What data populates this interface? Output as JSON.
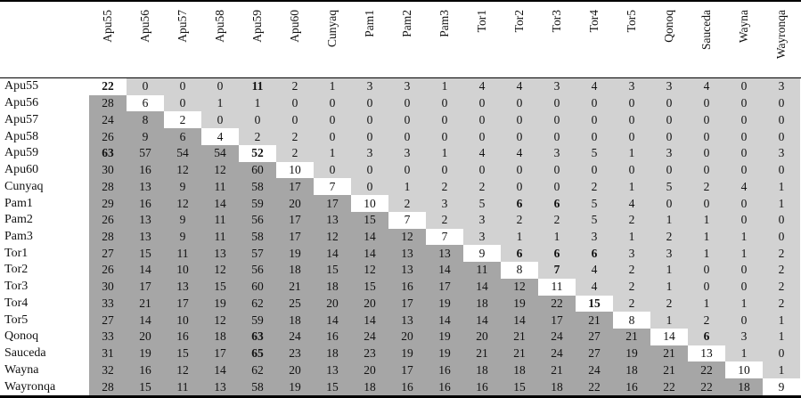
{
  "table": {
    "column_headers": [
      "Apu55",
      "Apu56",
      "Apu57",
      "Apu58",
      "Apu59",
      "Apu60",
      "Cunyaq",
      "Pam1",
      "Pam2",
      "Pam3",
      "Tor1",
      "Tor2",
      "Tor3",
      "Tor4",
      "Tor5",
      "Qonoq",
      "Sauceda",
      "Wayna",
      "Wayronqa"
    ],
    "row_headers": [
      "Apu55",
      "Apu56",
      "Apu57",
      "Apu58",
      "Apu59",
      "Apu60",
      "Cunyaq",
      "Pam1",
      "Pam2",
      "Pam3",
      "Tor1",
      "Tor2",
      "Tor3",
      "Tor4",
      "Tor5",
      "Qonoq",
      "Sauceda",
      "Wayna",
      "Wayronqa"
    ],
    "rows": [
      [
        22,
        0,
        0,
        0,
        11,
        2,
        1,
        3,
        3,
        1,
        4,
        4,
        3,
        4,
        3,
        3,
        4,
        0,
        3
      ],
      [
        28,
        6,
        0,
        1,
        1,
        0,
        0,
        0,
        0,
        0,
        0,
        0,
        0,
        0,
        0,
        0,
        0,
        0,
        0
      ],
      [
        24,
        8,
        2,
        0,
        0,
        0,
        0,
        0,
        0,
        0,
        0,
        0,
        0,
        0,
        0,
        0,
        0,
        0,
        0
      ],
      [
        26,
        9,
        6,
        4,
        2,
        2,
        0,
        0,
        0,
        0,
        0,
        0,
        0,
        0,
        0,
        0,
        0,
        0,
        0
      ],
      [
        63,
        57,
        54,
        54,
        52,
        2,
        1,
        3,
        3,
        1,
        4,
        4,
        3,
        5,
        1,
        3,
        0,
        0,
        3
      ],
      [
        30,
        16,
        12,
        12,
        60,
        10,
        0,
        0,
        0,
        0,
        0,
        0,
        0,
        0,
        0,
        0,
        0,
        0,
        0
      ],
      [
        28,
        13,
        9,
        11,
        58,
        17,
        7,
        0,
        1,
        2,
        2,
        0,
        0,
        2,
        1,
        5,
        2,
        4,
        1
      ],
      [
        29,
        16,
        12,
        14,
        59,
        20,
        17,
        10,
        2,
        3,
        5,
        6,
        6,
        5,
        4,
        0,
        0,
        0,
        1
      ],
      [
        26,
        13,
        9,
        11,
        56,
        17,
        13,
        15,
        7,
        2,
        3,
        2,
        2,
        5,
        2,
        1,
        1,
        0,
        0
      ],
      [
        28,
        13,
        9,
        11,
        58,
        17,
        12,
        14,
        12,
        7,
        3,
        1,
        1,
        3,
        1,
        2,
        1,
        1,
        0
      ],
      [
        27,
        15,
        11,
        13,
        57,
        19,
        14,
        14,
        13,
        13,
        9,
        6,
        6,
        6,
        3,
        3,
        1,
        1,
        2
      ],
      [
        26,
        14,
        10,
        12,
        56,
        18,
        15,
        12,
        13,
        14,
        11,
        8,
        7,
        4,
        2,
        1,
        0,
        0,
        2
      ],
      [
        30,
        17,
        13,
        15,
        60,
        21,
        18,
        15,
        16,
        17,
        14,
        12,
        11,
        4,
        2,
        1,
        0,
        0,
        2
      ],
      [
        33,
        21,
        17,
        19,
        62,
        25,
        20,
        20,
        17,
        19,
        18,
        19,
        22,
        15,
        2,
        2,
        1,
        1,
        2
      ],
      [
        27,
        14,
        10,
        12,
        59,
        18,
        14,
        14,
        13,
        14,
        14,
        14,
        17,
        21,
        8,
        1,
        2,
        0,
        1
      ],
      [
        33,
        20,
        16,
        18,
        63,
        24,
        16,
        24,
        20,
        19,
        20,
        21,
        24,
        27,
        21,
        14,
        6,
        3,
        1
      ],
      [
        31,
        19,
        15,
        17,
        65,
        23,
        18,
        23,
        19,
        19,
        21,
        21,
        24,
        27,
        19,
        21,
        13,
        1,
        0
      ],
      [
        32,
        16,
        12,
        14,
        62,
        20,
        13,
        20,
        17,
        16,
        18,
        18,
        21,
        24,
        18,
        21,
        22,
        10,
        1
      ],
      [
        28,
        15,
        11,
        13,
        58,
        19,
        15,
        18,
        16,
        16,
        16,
        15,
        18,
        22,
        16,
        22,
        22,
        18,
        9
      ]
    ],
    "bold_cells": [
      [
        0,
        0
      ],
      [
        0,
        4
      ],
      [
        4,
        0
      ],
      [
        4,
        4
      ],
      [
        7,
        11
      ],
      [
        7,
        12
      ],
      [
        10,
        11
      ],
      [
        10,
        12
      ],
      [
        10,
        13
      ],
      [
        11,
        12
      ],
      [
        13,
        13
      ],
      [
        15,
        4
      ],
      [
        15,
        16
      ],
      [
        16,
        4
      ]
    ],
    "colors": {
      "diagonal_bg": "#ffffff",
      "upper_triangle_bg": "#d2d2d2",
      "lower_triangle_bg": "#a6a6a6",
      "rule_color": "#000000"
    }
  },
  "chart_data": {
    "type": "table",
    "title": "",
    "categories": [
      "Apu55",
      "Apu56",
      "Apu57",
      "Apu58",
      "Apu59",
      "Apu60",
      "Cunyaq",
      "Pam1",
      "Pam2",
      "Pam3",
      "Tor1",
      "Tor2",
      "Tor3",
      "Tor4",
      "Tor5",
      "Qonoq",
      "Sauceda",
      "Wayna",
      "Wayronqa"
    ],
    "note": "19x19 pairwise matrix; values duplicated in table.rows; white diagonal, shaded triangles"
  }
}
